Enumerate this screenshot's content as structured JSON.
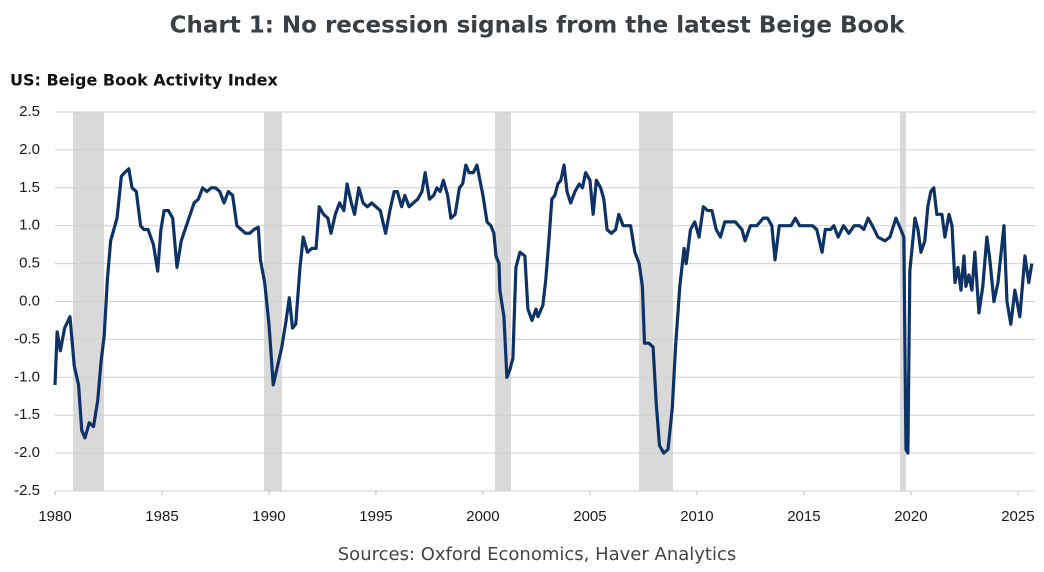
{
  "chart_data": {
    "type": "line",
    "title": "Chart 1: No recession signals from the latest Beige Book",
    "subtitle": "US: Beige Book Activity Index",
    "source": "Sources: Oxford Economics, Haver Analytics",
    "color": "#0d3366",
    "shade_color": "#d9d9d9",
    "grid": true,
    "xlim": [
      1980,
      2025.8
    ],
    "xticks": [
      1980,
      1985,
      1990,
      1995,
      2000,
      2005,
      2010,
      2015,
      2020,
      2025
    ],
    "ylim": [
      -2.5,
      2.5
    ],
    "yticks": [
      {
        "value": 2.5,
        "label": "2.5"
      },
      {
        "value": 2,
        "label": "2.0"
      },
      {
        "value": 1.5,
        "label": "1.5"
      },
      {
        "value": 1,
        "label": "1.0"
      },
      {
        "value": 0.5,
        "label": "0.5"
      },
      {
        "value": 0,
        "label": "0.0"
      },
      {
        "value": -0.5,
        "label": "-0.5"
      },
      {
        "value": -1,
        "label": "-1.0"
      },
      {
        "value": -1.5,
        "label": "-1.5"
      },
      {
        "value": -2,
        "label": "-2.0"
      },
      {
        "value": -2.5,
        "label": "-2.5"
      }
    ],
    "shaded_periods": [
      [
        1980.84,
        1982.29
      ],
      [
        1989.77,
        1990.61
      ],
      [
        2000.56,
        2001.31
      ],
      [
        2007.29,
        2008.88
      ],
      [
        2019.49,
        2019.77
      ]
    ],
    "x": [
      1980.0,
      1980.1,
      1980.25,
      1980.45,
      1980.7,
      1980.9,
      1981.1,
      1981.25,
      1981.4,
      1981.6,
      1981.8,
      1982.0,
      1982.15,
      1982.3,
      1982.45,
      1982.6,
      1982.9,
      1983.1,
      1983.25,
      1983.45,
      1983.6,
      1983.8,
      1984.0,
      1984.15,
      1984.35,
      1984.6,
      1984.8,
      1984.95,
      1985.1,
      1985.3,
      1985.5,
      1985.7,
      1985.9,
      1986.2,
      1986.5,
      1986.7,
      1986.9,
      1987.1,
      1987.3,
      1987.5,
      1987.7,
      1987.9,
      1988.1,
      1988.3,
      1988.5,
      1988.7,
      1988.9,
      1989.1,
      1989.3,
      1989.5,
      1989.6,
      1989.8,
      1990.0,
      1990.2,
      1990.4,
      1990.6,
      1990.8,
      1990.95,
      1991.1,
      1991.25,
      1991.45,
      1991.6,
      1991.8,
      1992.0,
      1992.2,
      1992.35,
      1992.55,
      1992.75,
      1992.9,
      1993.1,
      1993.3,
      1993.5,
      1993.65,
      1993.85,
      1994.0,
      1994.2,
      1994.4,
      1994.6,
      1994.8,
      1995.0,
      1995.2,
      1995.45,
      1995.65,
      1995.85,
      1996.0,
      1996.2,
      1996.35,
      1996.55,
      1996.75,
      1996.95,
      1997.15,
      1997.3,
      1997.5,
      1997.7,
      1997.85,
      1998.0,
      1998.15,
      1998.35,
      1998.5,
      1998.7,
      1998.9,
      1999.05,
      1999.2,
      1999.35,
      1999.55,
      1999.72,
      2000.0,
      2000.19,
      2000.37,
      2000.51,
      2000.61,
      2000.75,
      2000.79,
      2000.98,
      2001.12,
      2001.26,
      2001.4,
      2001.54,
      2001.73,
      2001.96,
      2002.1,
      2002.29,
      2002.48,
      2002.57,
      2002.8,
      2002.94,
      2003.08,
      2003.22,
      2003.36,
      2003.5,
      2003.64,
      2003.79,
      2003.93,
      2004.1,
      2004.3,
      2004.5,
      2004.65,
      2004.8,
      2005.0,
      2005.15,
      2005.3,
      2005.5,
      2005.65,
      2005.8,
      2006.0,
      2006.2,
      2006.35,
      2006.55,
      2006.75,
      2006.9,
      2007.1,
      2007.3,
      2007.45,
      2007.55,
      2007.75,
      2007.95,
      2008.1,
      2008.25,
      2008.45,
      2008.65,
      2008.85,
      2009.0,
      2009.2,
      2009.4,
      2009.5,
      2009.7,
      2009.9,
      2010.1,
      2010.3,
      2010.5,
      2010.7,
      2010.9,
      2011.1,
      2011.3,
      2011.5,
      2011.8,
      2012.1,
      2012.25,
      2012.5,
      2012.8,
      2013.1,
      2013.3,
      2013.5,
      2013.65,
      2013.85,
      2014.1,
      2014.4,
      2014.6,
      2014.8,
      2015.1,
      2015.4,
      2015.6,
      2015.85,
      2016.0,
      2016.25,
      2016.4,
      2016.6,
      2016.85,
      2017.1,
      2017.35,
      2017.6,
      2017.8,
      2018.0,
      2018.2,
      2018.46,
      2018.79,
      2019.02,
      2019.3,
      2019.53,
      2019.67,
      2019.77,
      2019.86,
      2019.95,
      2020.19,
      2020.33,
      2020.47,
      2020.65,
      2020.79,
      2020.93,
      2021.07,
      2021.21,
      2021.45,
      2021.59,
      2021.78,
      2021.92,
      2022.06,
      2022.2,
      2022.34,
      2022.48,
      2022.57,
      2022.71,
      2022.85,
      2022.99,
      2023.18,
      2023.36,
      2023.55,
      2023.69,
      2023.88,
      2024.07,
      2024.35,
      2024.49,
      2024.67,
      2024.86,
      2025.09,
      2025.33,
      2025.51,
      2025.65
    ],
    "values": [
      -1.1,
      -0.4,
      -0.65,
      -0.35,
      -0.2,
      -0.85,
      -1.1,
      -1.7,
      -1.8,
      -1.6,
      -1.65,
      -1.3,
      -0.8,
      -0.45,
      0.3,
      0.8,
      1.1,
      1.65,
      1.7,
      1.75,
      1.5,
      1.45,
      1.0,
      0.95,
      0.95,
      0.75,
      0.4,
      0.95,
      1.2,
      1.2,
      1.1,
      0.45,
      0.8,
      1.05,
      1.3,
      1.35,
      1.5,
      1.45,
      1.5,
      1.5,
      1.45,
      1.3,
      1.45,
      1.4,
      1.0,
      0.95,
      0.9,
      0.9,
      0.95,
      0.98,
      0.55,
      0.25,
      -0.3,
      -1.1,
      -0.85,
      -0.6,
      -0.25,
      0.05,
      -0.35,
      -0.3,
      0.45,
      0.85,
      0.65,
      0.7,
      0.7,
      1.25,
      1.15,
      1.1,
      0.9,
      1.15,
      1.3,
      1.2,
      1.55,
      1.3,
      1.15,
      1.5,
      1.3,
      1.25,
      1.3,
      1.25,
      1.2,
      0.9,
      1.2,
      1.45,
      1.45,
      1.25,
      1.4,
      1.25,
      1.3,
      1.35,
      1.45,
      1.7,
      1.35,
      1.4,
      1.5,
      1.45,
      1.6,
      1.4,
      1.1,
      1.15,
      1.5,
      1.55,
      1.8,
      1.7,
      1.7,
      1.8,
      1.4,
      1.05,
      1.0,
      0.9,
      0.6,
      0.5,
      0.15,
      -0.2,
      -1.0,
      -0.9,
      -0.75,
      0.45,
      0.65,
      0.6,
      -0.1,
      -0.25,
      -0.1,
      -0.2,
      -0.05,
      0.3,
      0.8,
      1.35,
      1.4,
      1.55,
      1.6,
      1.8,
      1.45,
      1.3,
      1.45,
      1.55,
      1.5,
      1.7,
      1.6,
      1.15,
      1.6,
      1.5,
      1.35,
      0.95,
      0.9,
      0.95,
      1.15,
      1.0,
      1.0,
      1.0,
      0.65,
      0.5,
      0.2,
      -0.55,
      -0.55,
      -0.6,
      -1.35,
      -1.9,
      -2.0,
      -1.95,
      -1.4,
      -0.6,
      0.2,
      0.7,
      0.5,
      0.95,
      1.05,
      0.85,
      1.25,
      1.2,
      1.2,
      0.95,
      0.85,
      1.05,
      1.05,
      1.05,
      0.95,
      0.8,
      1.0,
      1.0,
      1.1,
      1.1,
      1.0,
      0.55,
      1.0,
      1.0,
      1.0,
      1.1,
      1.0,
      1.0,
      1.0,
      0.95,
      0.65,
      0.95,
      0.95,
      1.0,
      0.85,
      1.0,
      0.9,
      1.0,
      1.0,
      0.95,
      1.1,
      1.0,
      0.85,
      0.8,
      0.85,
      1.1,
      0.95,
      0.85,
      -1.95,
      -2.0,
      0.4,
      1.1,
      0.95,
      0.65,
      0.8,
      1.25,
      1.45,
      1.5,
      1.15,
      1.15,
      0.85,
      1.15,
      1.0,
      0.25,
      0.45,
      0.15,
      0.6,
      0.2,
      0.35,
      0.15,
      0.65,
      -0.15,
      0.2,
      0.85,
      0.55,
      0.0,
      0.25,
      1.0,
      0.0,
      -0.3,
      0.15,
      -0.2,
      0.6,
      0.25,
      0.5
    ]
  }
}
